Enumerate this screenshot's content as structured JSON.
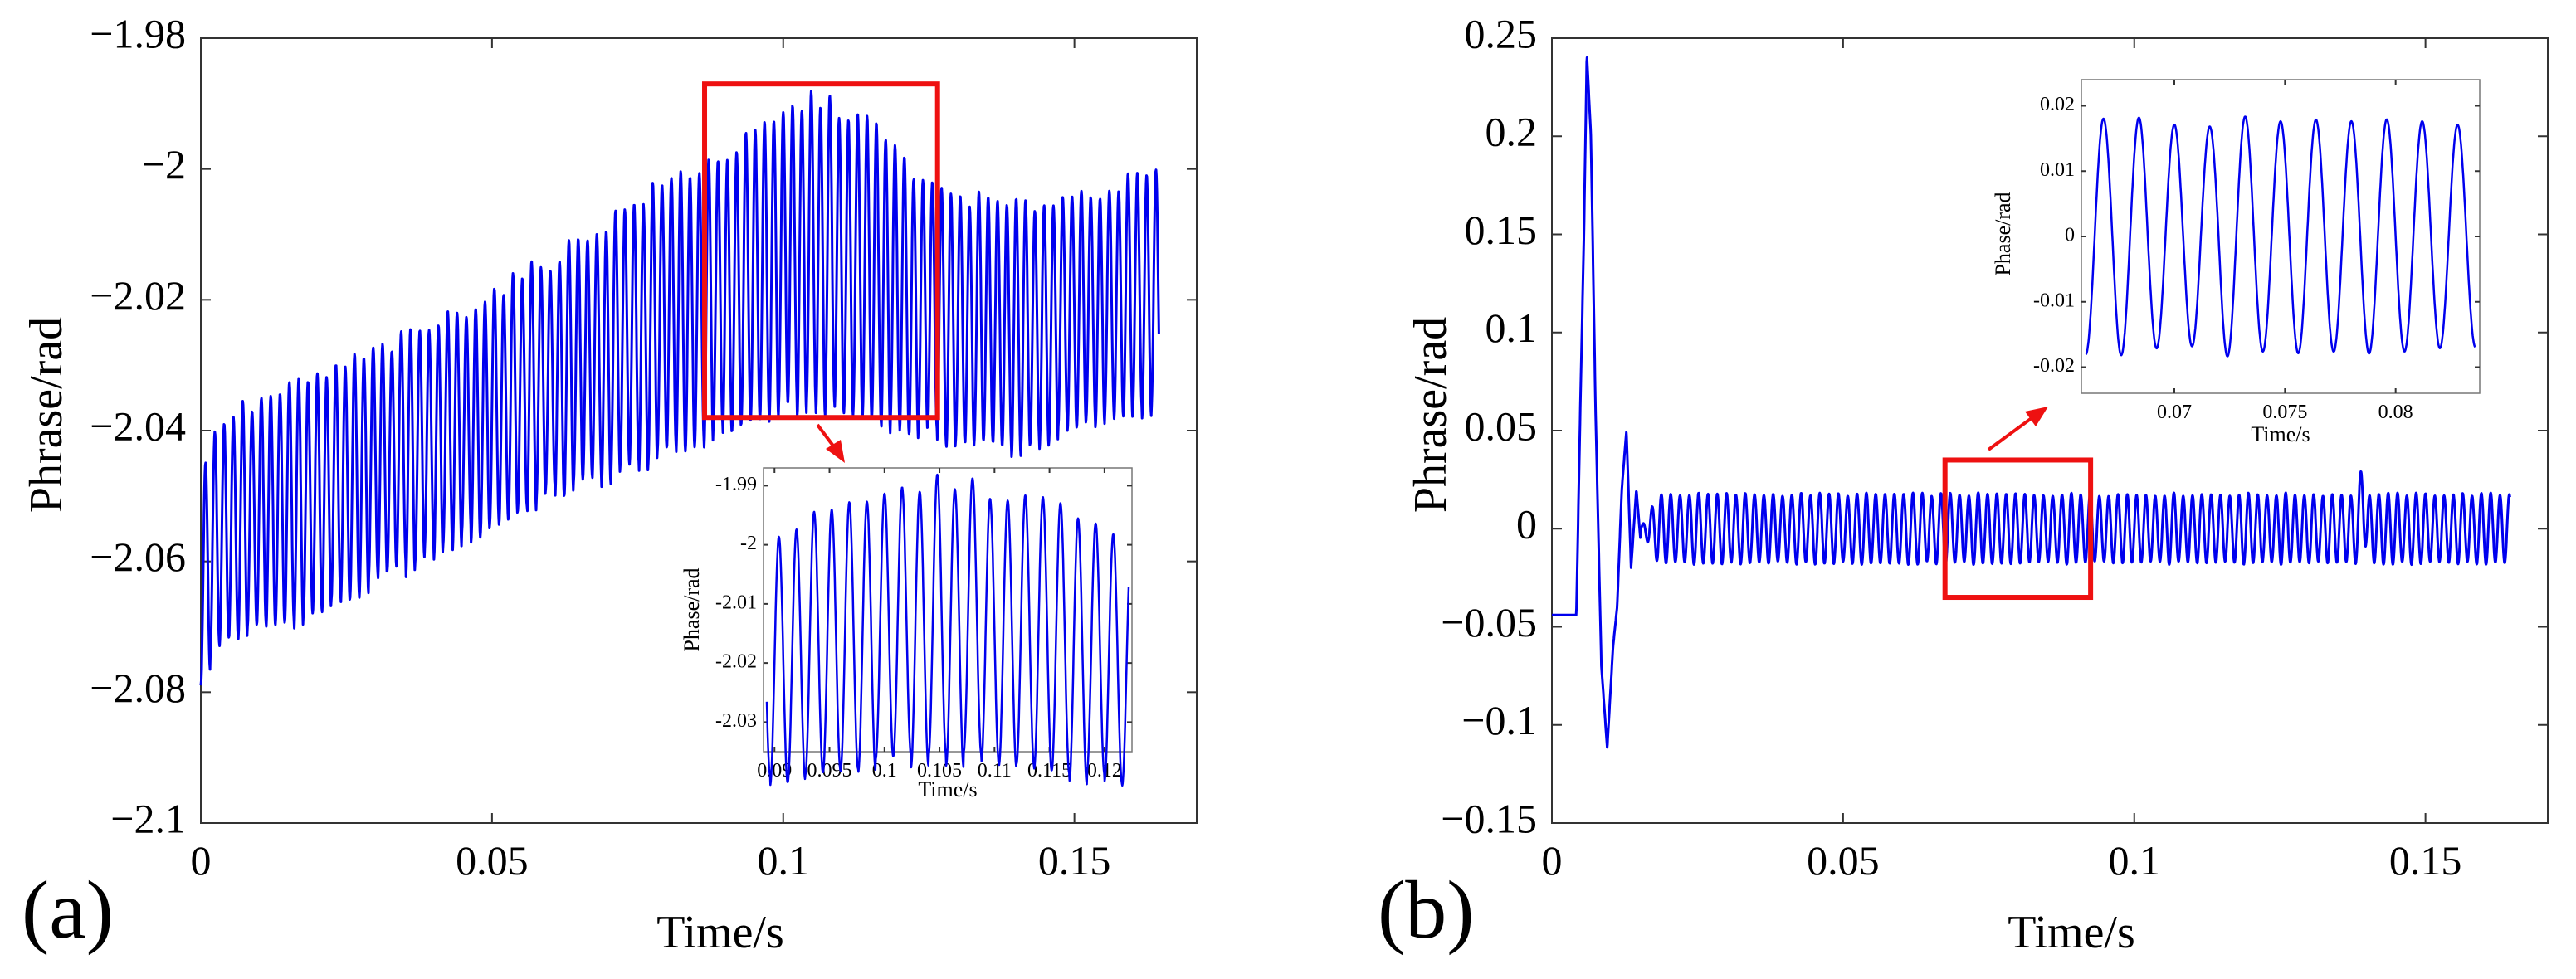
{
  "colors": {
    "trace": "#0000ee",
    "zoom_box": "#ee1111",
    "frame": "#333333"
  },
  "chart_data": [
    {
      "id": "a",
      "type": "line",
      "panel_label": "(a)",
      "xlabel": "Time/s",
      "ylabel": "Phrase/rad",
      "xlim": [
        0,
        0.171
      ],
      "ylim": [
        -2.1,
        -1.98
      ],
      "xticks": [
        0,
        0.05,
        0.1,
        0.15
      ],
      "xtick_labels": [
        "0",
        "0.05",
        "0.1",
        "0.15"
      ],
      "yticks": [
        -2.1,
        -2.08,
        -2.06,
        -2.04,
        -2.02,
        -2,
        -1.98
      ],
      "ytick_labels": [
        "−2.1",
        "−2.08",
        "−2.06",
        "−2.04",
        "−2.02",
        "−2",
        "−1.98"
      ],
      "grid": false,
      "series": [
        {
          "name": "phase",
          "description": "oscillating phase signal",
          "t_start": 0,
          "t_end": 0.1645,
          "period": 0.0016,
          "lower_envelope": [
            [
              0,
              -2.078
            ],
            [
              0.004,
              -2.072
            ],
            [
              0.02,
              -2.068
            ],
            [
              0.04,
              -2.059
            ],
            [
              0.06,
              -2.05
            ],
            [
              0.08,
              -2.044
            ],
            [
              0.09,
              -2.04
            ],
            [
              0.105,
              -2.036
            ],
            [
              0.115,
              -2.038
            ],
            [
              0.125,
              -2.041
            ],
            [
              0.14,
              -2.043
            ],
            [
              0.15,
              -2.04
            ],
            [
              0.1645,
              -2.036
            ]
          ],
          "upper_envelope": [
            [
              0,
              -2.046
            ],
            [
              0.004,
              -2.038
            ],
            [
              0.02,
              -2.032
            ],
            [
              0.04,
              -2.024
            ],
            [
              0.06,
              -2.014
            ],
            [
              0.08,
              -2.002
            ],
            [
              0.09,
              -1.998
            ],
            [
              0.105,
              -1.989
            ],
            [
              0.115,
              -1.993
            ],
            [
              0.125,
              -2.003
            ],
            [
              0.14,
              -2.006
            ],
            [
              0.15,
              -2.004
            ],
            [
              0.1645,
              -2.001
            ]
          ]
        }
      ],
      "zoom_region": {
        "x": [
          0.0865,
          0.1265
        ],
        "y": [
          -2.038,
          -1.987
        ]
      },
      "inset": {
        "xlabel": "Time/s",
        "ylabel": "Phase/rad",
        "xlim": [
          0.089,
          0.1225
        ],
        "ylim": [
          -2.035,
          -1.987
        ],
        "xticks": [
          0.09,
          0.095,
          0.1,
          0.105,
          0.11,
          0.115,
          0.12
        ],
        "xtick_labels": [
          "0.09",
          "0.095",
          "0.1",
          "0.105",
          "0.11",
          "0.115",
          "0.12"
        ],
        "yticks": [
          -2.03,
          -2.02,
          -2.01,
          -2,
          -1.99
        ],
        "ytick_labels": [
          "-2.03",
          "-2.02",
          "-2.01",
          "-2",
          "-1.99"
        ]
      }
    },
    {
      "id": "b",
      "type": "line",
      "panel_label": "(b)",
      "xlabel": "Time/s",
      "ylabel": "Phrase/rad",
      "xlim": [
        0,
        0.171
      ],
      "ylim": [
        -0.15,
        0.25
      ],
      "xticks": [
        0,
        0.05,
        0.1,
        0.15
      ],
      "xtick_labels": [
        "0",
        "0.05",
        "0.1",
        "0.15"
      ],
      "yticks": [
        -0.15,
        -0.1,
        -0.05,
        0,
        0.05,
        0.1,
        0.15,
        0.2,
        0.25
      ],
      "ytick_labels": [
        "−0.15",
        "−0.1",
        "−0.05",
        "0",
        "0.05",
        "0.1",
        "0.15",
        "0.2",
        "0.25"
      ],
      "grid": false,
      "series": [
        {
          "name": "phase",
          "description": "flat pre-fault level, transient spike, then steady oscillation",
          "initial_level": -0.044,
          "initial_until": 0.0042,
          "transient": [
            [
              0.0042,
              -0.044
            ],
            [
              0.0048,
              0.05
            ],
            [
              0.0055,
              0.15
            ],
            [
              0.006,
              0.242
            ],
            [
              0.0067,
              0.2
            ],
            [
              0.0075,
              0.06
            ],
            [
              0.0085,
              -0.07
            ],
            [
              0.0095,
              -0.112
            ],
            [
              0.0105,
              -0.06
            ],
            [
              0.0112,
              -0.04
            ],
            [
              0.012,
              0.02
            ],
            [
              0.0128,
              0.05
            ],
            [
              0.0136,
              -0.02
            ],
            [
              0.0145,
              0.02
            ],
            [
              0.0152,
              -0.005
            ]
          ],
          "steady_amplitude": 0.018,
          "steady_period": 0.0016,
          "steady_until": 0.1645,
          "disturbance": {
            "t": 0.1392,
            "peak": 0.026
          }
        }
      ],
      "zoom_region": {
        "x": [
          0.0675,
          0.0925
        ],
        "y": [
          -0.035,
          0.035
        ]
      },
      "inset": {
        "xlabel": "Time/s",
        "ylabel": "Phase/rad",
        "xlim": [
          0.0658,
          0.0838
        ],
        "ylim": [
          -0.024,
          0.024
        ],
        "xticks": [
          0.07,
          0.075,
          0.08
        ],
        "xtick_labels": [
          "0.07",
          "0.075",
          "0.08"
        ],
        "yticks": [
          -0.02,
          -0.01,
          0,
          0.01,
          0.02
        ],
        "ytick_labels": [
          "-0.02",
          "-0.01",
          "0",
          "0.01",
          "0.02"
        ]
      }
    }
  ]
}
